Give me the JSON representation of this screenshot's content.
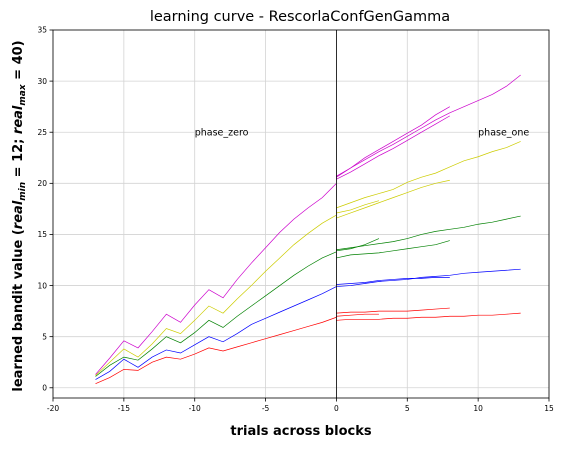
{
  "chart_data": {
    "type": "line",
    "title": "learning curve - RescorlaConfGenGamma",
    "xlabel": "trials across blocks",
    "ylabel": "learned bandit value ($real_{min} = 12; real_{max} = 40$)",
    "ylabel_parts": {
      "prefix": "learned bandit value (",
      "a_var": "real",
      "a_sub": "min",
      "a_val": " = 12; ",
      "b_var": "real",
      "b_sub": "max",
      "b_val": " = 40)"
    },
    "xlim": [
      -20,
      15
    ],
    "ylim": [
      -1,
      35
    ],
    "xticks": [
      -20,
      -15,
      -10,
      -5,
      0,
      5,
      10,
      15
    ],
    "yticks": [
      0,
      5,
      10,
      15,
      20,
      25,
      30,
      35
    ],
    "grid": true,
    "vertical_line_x": 0,
    "annotations": [
      {
        "text": "phase_zero",
        "x": -10,
        "y": 25
      },
      {
        "text": "phase_one",
        "x": 10,
        "y": 25
      }
    ],
    "series": [
      {
        "color": "#ff0000",
        "points": [
          [
            -17,
            0.4
          ],
          [
            -16,
            1.0
          ],
          [
            -15,
            1.8
          ],
          [
            -14,
            1.7
          ],
          [
            -13,
            2.5
          ],
          [
            -12,
            3.0
          ],
          [
            -11,
            2.8
          ],
          [
            -10,
            3.3
          ],
          [
            -9,
            3.9
          ],
          [
            -8,
            3.6
          ],
          [
            -7,
            4.0
          ],
          [
            -6,
            4.4
          ],
          [
            -5,
            4.8
          ],
          [
            -4,
            5.2
          ],
          [
            -3,
            5.6
          ],
          [
            -2,
            6.0
          ],
          [
            -1,
            6.4
          ],
          [
            0,
            6.9
          ]
        ]
      },
      {
        "color": "#0000ff",
        "points": [
          [
            -17,
            0.8
          ],
          [
            -16,
            1.6
          ],
          [
            -15,
            2.8
          ],
          [
            -14,
            2.0
          ],
          [
            -13,
            3.0
          ],
          [
            -12,
            3.7
          ],
          [
            -11,
            3.4
          ],
          [
            -10,
            4.2
          ],
          [
            -9,
            5.0
          ],
          [
            -8,
            4.5
          ],
          [
            -7,
            5.3
          ],
          [
            -6,
            6.2
          ],
          [
            -5,
            6.8
          ],
          [
            -4,
            7.4
          ],
          [
            -3,
            8.0
          ],
          [
            -2,
            8.6
          ],
          [
            -1,
            9.2
          ],
          [
            0,
            9.9
          ]
        ]
      },
      {
        "color": "#008000",
        "points": [
          [
            -17,
            1.1
          ],
          [
            -16,
            2.2
          ],
          [
            -15,
            3.0
          ],
          [
            -14,
            2.7
          ],
          [
            -13,
            3.8
          ],
          [
            -12,
            5.0
          ],
          [
            -11,
            4.4
          ],
          [
            -10,
            5.4
          ],
          [
            -9,
            6.6
          ],
          [
            -8,
            5.9
          ],
          [
            -7,
            7.0
          ],
          [
            -6,
            8.0
          ],
          [
            -5,
            9.0
          ],
          [
            -4,
            10.0
          ],
          [
            -3,
            11.0
          ],
          [
            -2,
            11.9
          ],
          [
            -1,
            12.7
          ],
          [
            0,
            13.3
          ]
        ]
      },
      {
        "color": "#cccc00",
        "points": [
          [
            -17,
            1.2
          ],
          [
            -16,
            2.5
          ],
          [
            -15,
            3.8
          ],
          [
            -14,
            3.0
          ],
          [
            -13,
            4.3
          ],
          [
            -12,
            5.8
          ],
          [
            -11,
            5.3
          ],
          [
            -10,
            6.6
          ],
          [
            -9,
            8.0
          ],
          [
            -8,
            7.3
          ],
          [
            -7,
            8.7
          ],
          [
            -6,
            10.0
          ],
          [
            -5,
            11.4
          ],
          [
            -4,
            12.7
          ],
          [
            -3,
            14.0
          ],
          [
            -2,
            15.1
          ],
          [
            -1,
            16.1
          ],
          [
            0,
            16.9
          ]
        ]
      },
      {
        "color": "#cc00cc",
        "points": [
          [
            -17,
            1.3
          ],
          [
            -16,
            2.9
          ],
          [
            -15,
            4.6
          ],
          [
            -14,
            3.9
          ],
          [
            -13,
            5.5
          ],
          [
            -12,
            7.2
          ],
          [
            -11,
            6.4
          ],
          [
            -10,
            8.1
          ],
          [
            -9,
            9.6
          ],
          [
            -8,
            8.8
          ],
          [
            -7,
            10.6
          ],
          [
            -6,
            12.2
          ],
          [
            -5,
            13.7
          ],
          [
            -4,
            15.2
          ],
          [
            -3,
            16.5
          ],
          [
            -2,
            17.6
          ],
          [
            -1,
            18.6
          ],
          [
            0,
            20.0
          ]
        ]
      },
      {
        "color": "#ff0000",
        "points": [
          [
            0,
            6.6
          ],
          [
            1,
            6.7
          ],
          [
            2,
            6.7
          ],
          [
            3,
            6.7
          ],
          [
            4,
            6.8
          ],
          [
            5,
            6.8
          ],
          [
            6,
            6.9
          ],
          [
            7,
            6.9
          ],
          [
            8,
            7.0
          ],
          [
            9,
            7.0
          ],
          [
            10,
            7.1
          ],
          [
            11,
            7.1
          ],
          [
            12,
            7.2
          ],
          [
            13,
            7.3
          ]
        ]
      },
      {
        "color": "#ff0000",
        "points": [
          [
            0,
            7.3
          ],
          [
            1,
            7.4
          ],
          [
            2,
            7.4
          ],
          [
            3,
            7.5
          ],
          [
            4,
            7.5
          ],
          [
            5,
            7.5
          ],
          [
            6,
            7.6
          ],
          [
            7,
            7.7
          ],
          [
            8,
            7.8
          ]
        ]
      },
      {
        "color": "#ff0000",
        "points": [
          [
            0,
            7.0
          ],
          [
            1,
            7.1
          ],
          [
            2,
            7.2
          ],
          [
            3,
            7.2
          ]
        ]
      },
      {
        "color": "#0000ff",
        "points": [
          [
            0,
            9.9
          ],
          [
            1,
            10.0
          ],
          [
            2,
            10.2
          ],
          [
            3,
            10.4
          ],
          [
            4,
            10.5
          ],
          [
            5,
            10.6
          ],
          [
            6,
            10.8
          ],
          [
            7,
            10.9
          ],
          [
            8,
            11.0
          ],
          [
            9,
            11.2
          ],
          [
            10,
            11.3
          ],
          [
            11,
            11.4
          ],
          [
            12,
            11.5
          ],
          [
            13,
            11.6
          ]
        ]
      },
      {
        "color": "#0000ff",
        "points": [
          [
            0,
            10.1
          ],
          [
            1,
            10.2
          ],
          [
            2,
            10.3
          ],
          [
            3,
            10.5
          ],
          [
            4,
            10.6
          ],
          [
            5,
            10.7
          ],
          [
            6,
            10.7
          ],
          [
            7,
            10.8
          ],
          [
            8,
            10.8
          ]
        ]
      },
      {
        "color": "#008000",
        "points": [
          [
            0,
            12.7
          ],
          [
            1,
            13.0
          ],
          [
            2,
            13.1
          ],
          [
            3,
            13.2
          ],
          [
            4,
            13.4
          ],
          [
            5,
            13.6
          ],
          [
            6,
            13.8
          ],
          [
            7,
            14.0
          ],
          [
            8,
            14.4
          ]
        ]
      },
      {
        "color": "#008000",
        "points": [
          [
            0,
            13.5
          ],
          [
            1,
            13.7
          ],
          [
            2,
            13.9
          ],
          [
            3,
            14.1
          ],
          [
            4,
            14.3
          ],
          [
            5,
            14.6
          ],
          [
            6,
            15.0
          ],
          [
            7,
            15.3
          ],
          [
            8,
            15.5
          ],
          [
            9,
            15.7
          ],
          [
            10,
            16.0
          ],
          [
            11,
            16.2
          ],
          [
            12,
            16.5
          ],
          [
            13,
            16.8
          ]
        ]
      },
      {
        "color": "#008000",
        "points": [
          [
            0,
            13.4
          ],
          [
            1,
            13.6
          ],
          [
            2,
            14.0
          ],
          [
            3,
            14.6
          ]
        ]
      },
      {
        "color": "#cccc00",
        "points": [
          [
            0,
            16.6
          ],
          [
            1,
            17.1
          ],
          [
            2,
            17.6
          ],
          [
            3,
            18.1
          ],
          [
            4,
            18.6
          ],
          [
            5,
            19.1
          ],
          [
            6,
            19.6
          ],
          [
            7,
            20.0
          ],
          [
            8,
            20.3
          ]
        ]
      },
      {
        "color": "#cccc00",
        "points": [
          [
            0,
            17.6
          ],
          [
            1,
            18.1
          ],
          [
            2,
            18.6
          ],
          [
            3,
            19.0
          ],
          [
            4,
            19.4
          ],
          [
            5,
            20.1
          ],
          [
            6,
            20.6
          ],
          [
            7,
            21.0
          ],
          [
            8,
            21.6
          ],
          [
            9,
            22.2
          ],
          [
            10,
            22.6
          ],
          [
            11,
            23.1
          ],
          [
            12,
            23.5
          ],
          [
            13,
            24.1
          ]
        ]
      },
      {
        "color": "#cccc00",
        "points": [
          [
            0,
            17.1
          ],
          [
            1,
            17.4
          ],
          [
            2,
            17.9
          ],
          [
            3,
            18.3
          ]
        ]
      },
      {
        "color": "#cc00cc",
        "points": [
          [
            0,
            20.7
          ],
          [
            1,
            21.5
          ],
          [
            2,
            22.3
          ],
          [
            3,
            23.1
          ],
          [
            4,
            23.8
          ],
          [
            5,
            24.6
          ],
          [
            6,
            25.4
          ],
          [
            7,
            26.2
          ],
          [
            8,
            26.9
          ],
          [
            9,
            27.5
          ],
          [
            10,
            28.1
          ],
          [
            11,
            28.7
          ],
          [
            12,
            29.5
          ],
          [
            13,
            30.6
          ]
        ]
      },
      {
        "color": "#cc00cc",
        "points": [
          [
            0,
            20.4
          ],
          [
            1,
            21.1
          ],
          [
            2,
            21.9
          ],
          [
            3,
            22.7
          ],
          [
            4,
            23.4
          ],
          [
            5,
            24.2
          ],
          [
            6,
            25.0
          ],
          [
            7,
            25.8
          ],
          [
            8,
            26.6
          ]
        ]
      },
      {
        "color": "#cc00cc",
        "points": [
          [
            0,
            20.6
          ],
          [
            1,
            21.5
          ],
          [
            2,
            22.5
          ],
          [
            3,
            23.3
          ],
          [
            4,
            24.1
          ],
          [
            5,
            24.9
          ],
          [
            6,
            25.7
          ],
          [
            7,
            26.7
          ],
          [
            8,
            27.5
          ]
        ]
      }
    ]
  }
}
